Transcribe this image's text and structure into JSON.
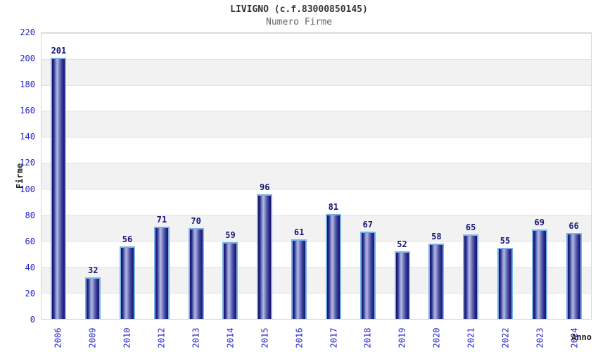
{
  "chart_data": {
    "type": "bar",
    "title": "LIVIGNO (c.f.83000850145)",
    "subtitle": "Numero Firme",
    "xlabel": "Anno",
    "ylabel": "Firme",
    "categories": [
      "2006",
      "2009",
      "2010",
      "2012",
      "2013",
      "2014",
      "2015",
      "2016",
      "2017",
      "2018",
      "2019",
      "2020",
      "2021",
      "2022",
      "2023",
      "2024"
    ],
    "values": [
      201,
      32,
      56,
      71,
      70,
      59,
      96,
      61,
      81,
      67,
      52,
      58,
      65,
      55,
      69,
      66
    ],
    "ylim": [
      0,
      220
    ],
    "yticks": [
      0,
      20,
      40,
      60,
      80,
      100,
      120,
      140,
      160,
      180,
      200,
      220
    ],
    "grid": "horizontal-bands-alternating",
    "legend_position": "none",
    "colors": {
      "bar_dark": "#12126e",
      "bar_light": "#b2bae2",
      "bar_cap_border": "#79b2e2",
      "tick_label": "#2323cc",
      "value_label": "#15157b",
      "band_gray": "#f2f2f2",
      "gridline": "#e3e3e3",
      "plot_border": "#d4d4d4",
      "title_color": "#333333",
      "subtitle_color": "#666666"
    }
  }
}
